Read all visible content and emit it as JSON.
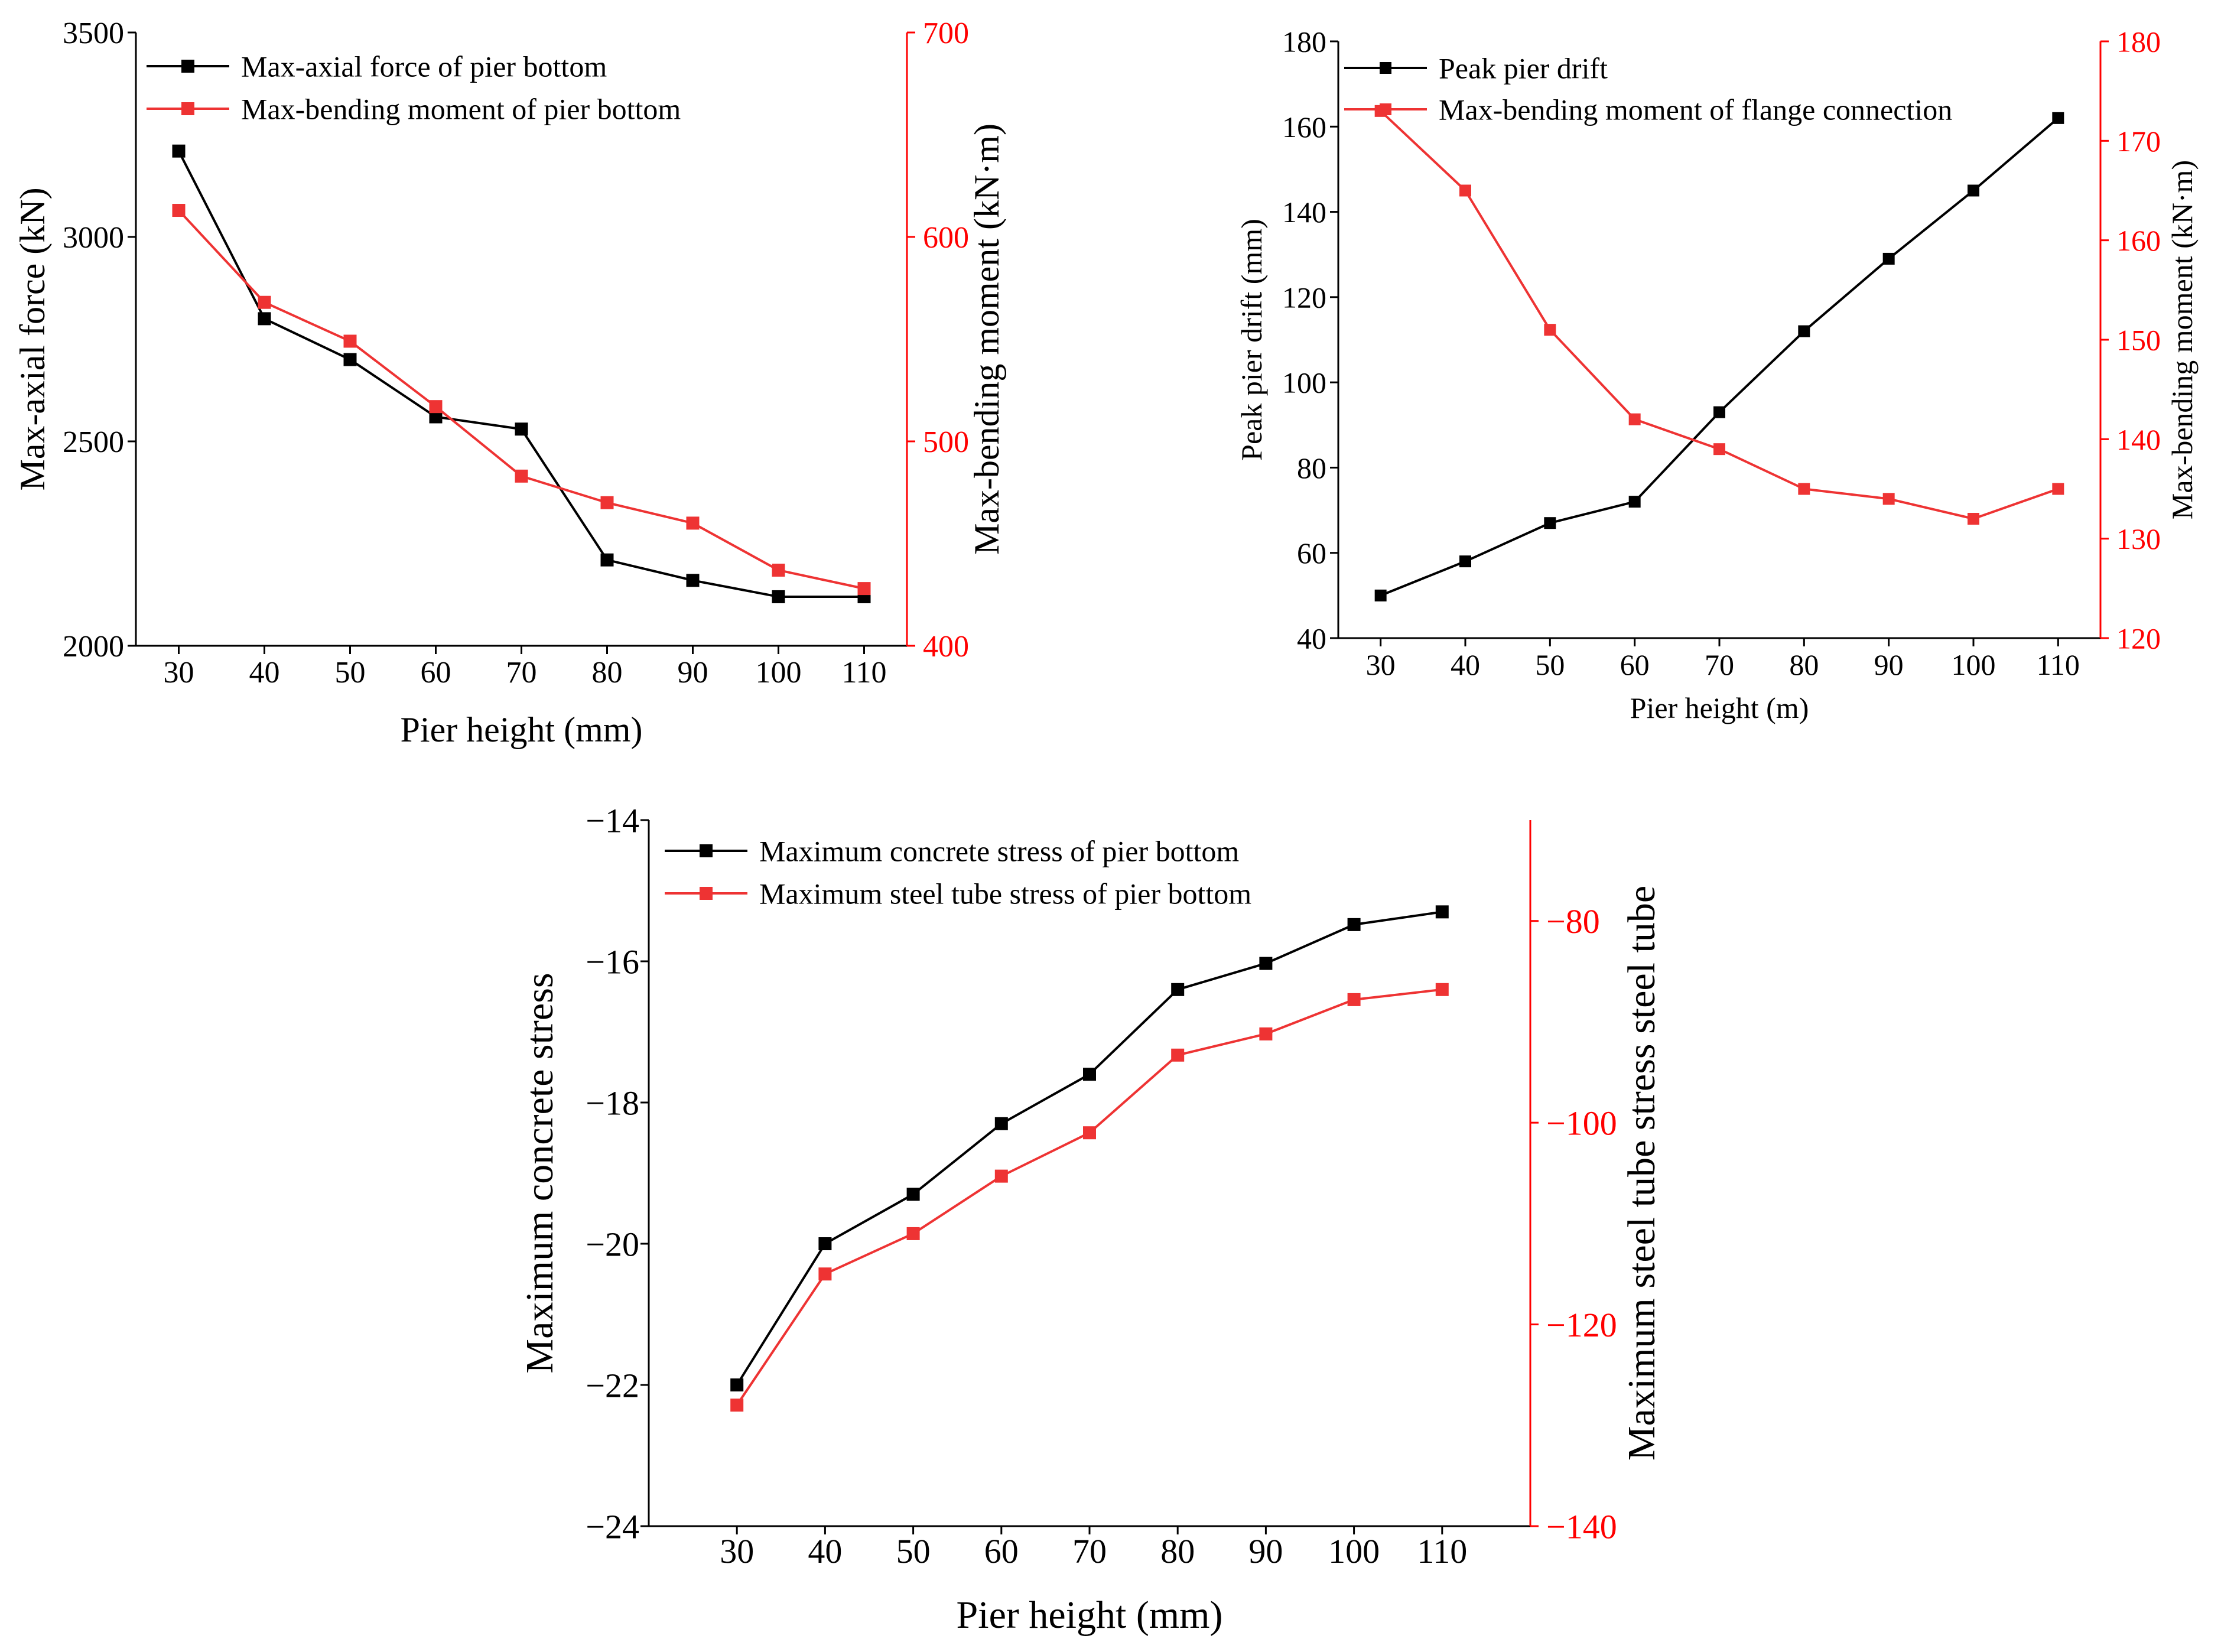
{
  "colors": {
    "series_black": "#000000",
    "series_red": "#ee3333",
    "axis_red": "#ff0000"
  },
  "chart_data": [
    {
      "type": "line",
      "x": [
        30,
        40,
        50,
        60,
        70,
        80,
        90,
        100,
        110
      ],
      "xlabel": "Pier height (mm)",
      "xticks": [
        "30",
        "40",
        "50",
        "60",
        "70",
        "80",
        "90",
        "100",
        "110"
      ],
      "xlim": [
        25,
        115
      ],
      "ylabel_left": "Max-axial force (kN)",
      "ylabel_right": "Max-bending moment (kN·m)",
      "ylim_left": [
        2000,
        3500
      ],
      "ylim_right": [
        400,
        700
      ],
      "yticks_left": [
        "2000",
        "2500",
        "3000",
        "3500"
      ],
      "yticks_right": [
        "400",
        "500",
        "600",
        "700"
      ],
      "legend_position": "top-left",
      "series": [
        {
          "name": "Max-axial force of pier bottom",
          "axis": "left",
          "color": "#000000",
          "values": [
            3210,
            2800,
            2700,
            2560,
            2530,
            2210,
            2160,
            2120,
            2120
          ]
        },
        {
          "name": "Max-bending moment of pier bottom",
          "axis": "right",
          "color": "#ee3333",
          "values": [
            613,
            568,
            549,
            517,
            483,
            470,
            460,
            437,
            428
          ]
        }
      ]
    },
    {
      "type": "line",
      "x": [
        30,
        40,
        50,
        60,
        70,
        80,
        90,
        100,
        110
      ],
      "xlabel": "Pier height (m)",
      "xticks": [
        "30",
        "40",
        "50",
        "60",
        "70",
        "80",
        "90",
        "100",
        "110"
      ],
      "xlim": [
        25,
        115
      ],
      "ylabel_left": "Peak pier drift (mm)",
      "ylabel_right": "Max-bending moment (kN·m)",
      "ylim_left": [
        40,
        180
      ],
      "ylim_right": [
        120,
        180
      ],
      "yticks_left": [
        "40",
        "60",
        "80",
        "100",
        "120",
        "140",
        "160",
        "180"
      ],
      "yticks_right": [
        "120",
        "130",
        "140",
        "150",
        "160",
        "170",
        "180"
      ],
      "legend_position": "top-left",
      "series": [
        {
          "name": "Peak pier drift",
          "axis": "left",
          "color": "#000000",
          "values": [
            50,
            58,
            67,
            72,
            93,
            112,
            129,
            145,
            162
          ]
        },
        {
          "name": "Max-bending moment of flange connection",
          "axis": "right",
          "color": "#ee3333",
          "values": [
            173,
            165,
            151,
            142,
            139,
            135,
            134,
            132,
            135
          ]
        }
      ]
    },
    {
      "type": "line",
      "x": [
        30,
        40,
        50,
        60,
        70,
        80,
        90,
        100,
        110
      ],
      "xlabel": "Pier height (mm)",
      "xticks": [
        "30",
        "40",
        "50",
        "60",
        "70",
        "80",
        "90",
        "100",
        "110"
      ],
      "xlim": [
        20,
        120
      ],
      "ylabel_left": "Maximum concrete stress",
      "ylabel_right": "Maximum steel tube stress steel tube",
      "ylim_left": [
        -24,
        -14
      ],
      "ylim_right": [
        -140,
        -70
      ],
      "yticks_left": [
        "−24",
        "−22",
        "−20",
        "−18",
        "−16",
        "−14"
      ],
      "yticks_right": [
        "−140",
        "−120",
        "−100",
        "−80"
      ],
      "legend_position": "top-left",
      "series": [
        {
          "name": "Maximum concrete stress of pier bottom",
          "axis": "left",
          "color": "#000000",
          "values": [
            -22.0,
            -20.0,
            -19.3,
            -18.3,
            -17.6,
            -16.4,
            -16.03,
            -15.48,
            -15.3
          ]
        },
        {
          "name": "Maximum steel tube stress of pier bottom",
          "axis": "right",
          "color": "#ee3333",
          "values": [
            -128,
            -115,
            -111,
            -105.3,
            -101,
            -93.3,
            -91.2,
            -87.8,
            -86.8
          ]
        }
      ]
    }
  ]
}
